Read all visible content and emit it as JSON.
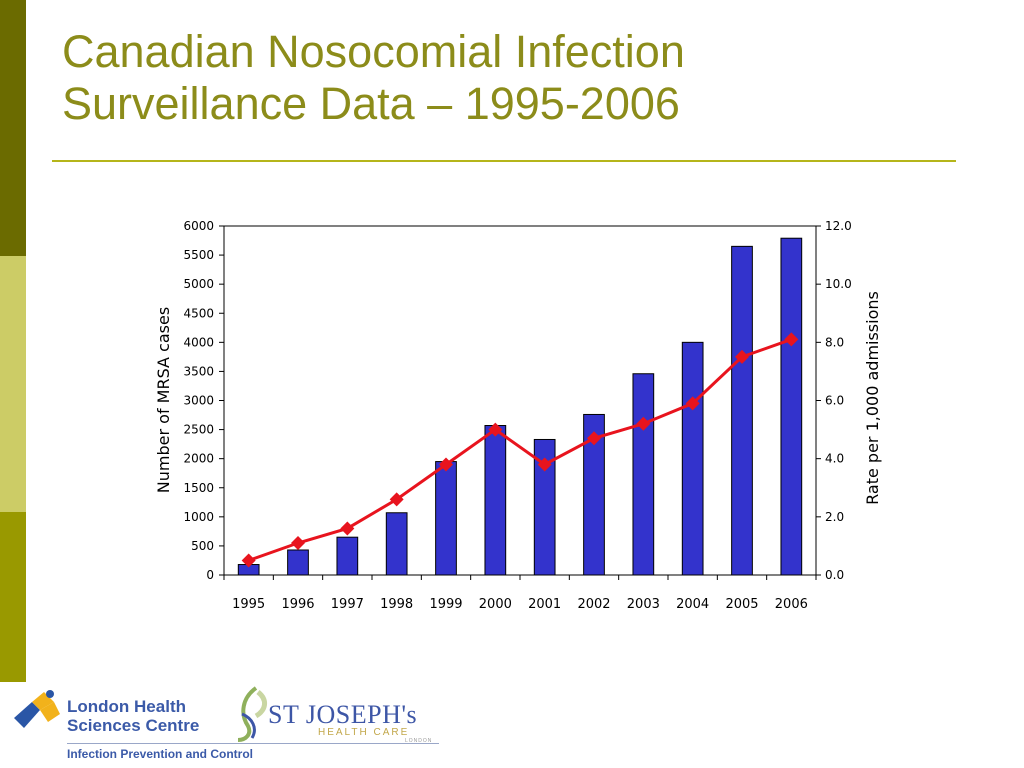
{
  "slide": {
    "title_line1": "Canadian Nosocomial Infection",
    "title_line2": "Surveillance Data – 1995-2006"
  },
  "colors": {
    "title": "#8c8c1a",
    "bar_fill": "#3333cc",
    "line": "#e8141e",
    "sidebar_dark": "#6b6b00",
    "sidebar_light": "#cccc66",
    "sidebar_mid": "#999900"
  },
  "chart_data": {
    "type": "bar",
    "categories": [
      "1995",
      "1996",
      "1997",
      "1998",
      "1999",
      "2000",
      "2001",
      "2002",
      "2003",
      "2004",
      "2005",
      "2006"
    ],
    "series": [
      {
        "type": "bar",
        "axis": "left",
        "values": [
          180,
          430,
          650,
          1070,
          1950,
          2570,
          2330,
          2760,
          3460,
          4000,
          5650,
          5790
        ]
      },
      {
        "type": "line",
        "axis": "right",
        "marker": "diamond",
        "values": [
          0.5,
          1.1,
          1.6,
          2.6,
          3.8,
          5.0,
          3.8,
          4.7,
          5.2,
          5.9,
          7.5,
          8.1
        ]
      }
    ],
    "ylabel": "Number of MRSA cases",
    "y2label": "Rate per 1,000 admissions",
    "ylim": [
      0,
      6000
    ],
    "y2lim": [
      0,
      12
    ],
    "yticks": [
      "0",
      "500",
      "1000",
      "1500",
      "2000",
      "2500",
      "3000",
      "3500",
      "4000",
      "4500",
      "5000",
      "5500",
      "6000"
    ],
    "y2ticks": [
      "0.0",
      "2.0",
      "4.0",
      "6.0",
      "8.0",
      "10.0",
      "12.0"
    ],
    "grid": false
  },
  "logos": {
    "lhsc_line1": "London Health",
    "lhsc_line2": "Sciences Centre",
    "ipc": "Infection Prevention and Control",
    "sj_name": "ST JOSEPH's",
    "sj_sub": "HEALTH CARE",
    "sj_sub2": "LONDON"
  }
}
